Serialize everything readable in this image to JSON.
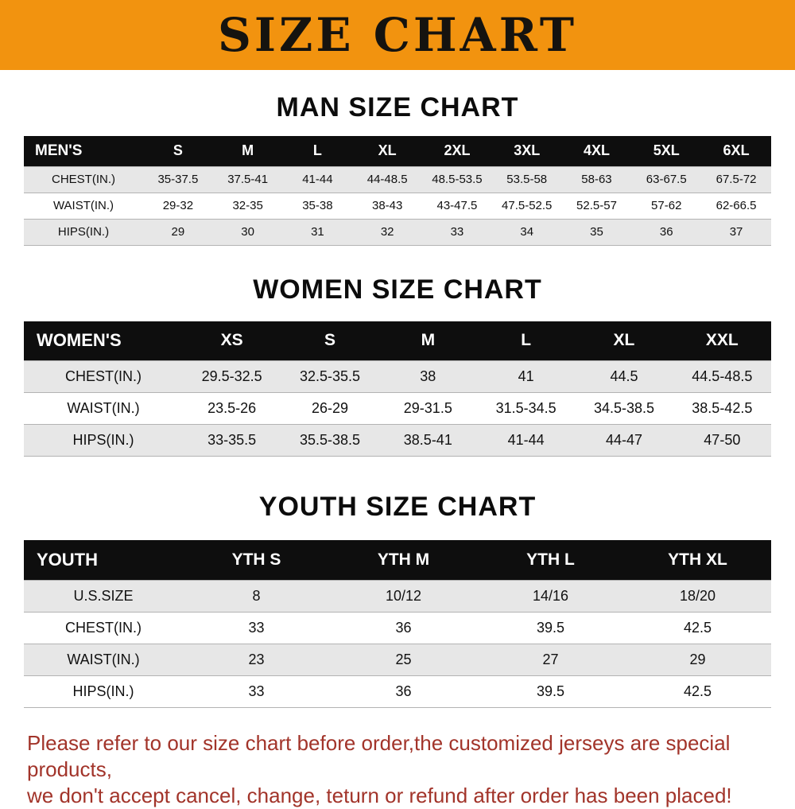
{
  "banner": {
    "title": "SIZE CHART",
    "bg_color": "#f2930f"
  },
  "sections": {
    "men": {
      "heading": "MAN SIZE CHART",
      "table": {
        "header": [
          "MEN'S",
          "S",
          "M",
          "L",
          "XL",
          "2XL",
          "3XL",
          "4XL",
          "5XL",
          "6XL"
        ],
        "rows": [
          [
            "CHEST(IN.)",
            "35-37.5",
            "37.5-41",
            "41-44",
            "44-48.5",
            "48.5-53.5",
            "53.5-58",
            "58-63",
            "63-67.5",
            "67.5-72"
          ],
          [
            "WAIST(IN.)",
            "29-32",
            "32-35",
            "35-38",
            "38-43",
            "43-47.5",
            "47.5-52.5",
            "52.5-57",
            "57-62",
            "62-66.5"
          ],
          [
            "HIPS(IN.)",
            "29",
            "30",
            "31",
            "32",
            "33",
            "34",
            "35",
            "36",
            "37"
          ]
        ]
      }
    },
    "women": {
      "heading": "WOMEN SIZE CHART",
      "table": {
        "header": [
          "WOMEN'S",
          "XS",
          "S",
          "M",
          "L",
          "XL",
          "XXL"
        ],
        "rows": [
          [
            "CHEST(IN.)",
            "29.5-32.5",
            "32.5-35.5",
            "38",
            "41",
            "44.5",
            "44.5-48.5"
          ],
          [
            "WAIST(IN.)",
            "23.5-26",
            "26-29",
            "29-31.5",
            "31.5-34.5",
            "34.5-38.5",
            "38.5-42.5"
          ],
          [
            "HIPS(IN.)",
            "33-35.5",
            "35.5-38.5",
            "38.5-41",
            "41-44",
            "44-47",
            "47-50"
          ]
        ]
      }
    },
    "youth": {
      "heading": "YOUTH SIZE CHART",
      "table": {
        "header": [
          "YOUTH",
          "YTH S",
          "YTH M",
          "YTH L",
          "YTH XL"
        ],
        "rows": [
          [
            "U.S.SIZE",
            "8",
            "10/12",
            "14/16",
            "18/20"
          ],
          [
            "CHEST(IN.)",
            "33",
            "36",
            "39.5",
            "42.5"
          ],
          [
            "WAIST(IN.)",
            "23",
            "25",
            "27",
            "29"
          ],
          [
            "HIPS(IN.)",
            "33",
            "36",
            "39.5",
            "42.5"
          ]
        ]
      }
    }
  },
  "footer": {
    "line1": "Please refer to our size chart before order,the customized jerseys are special products,",
    "line2": "we don't accept cancel, change, teturn or refund after order has been placed!"
  }
}
